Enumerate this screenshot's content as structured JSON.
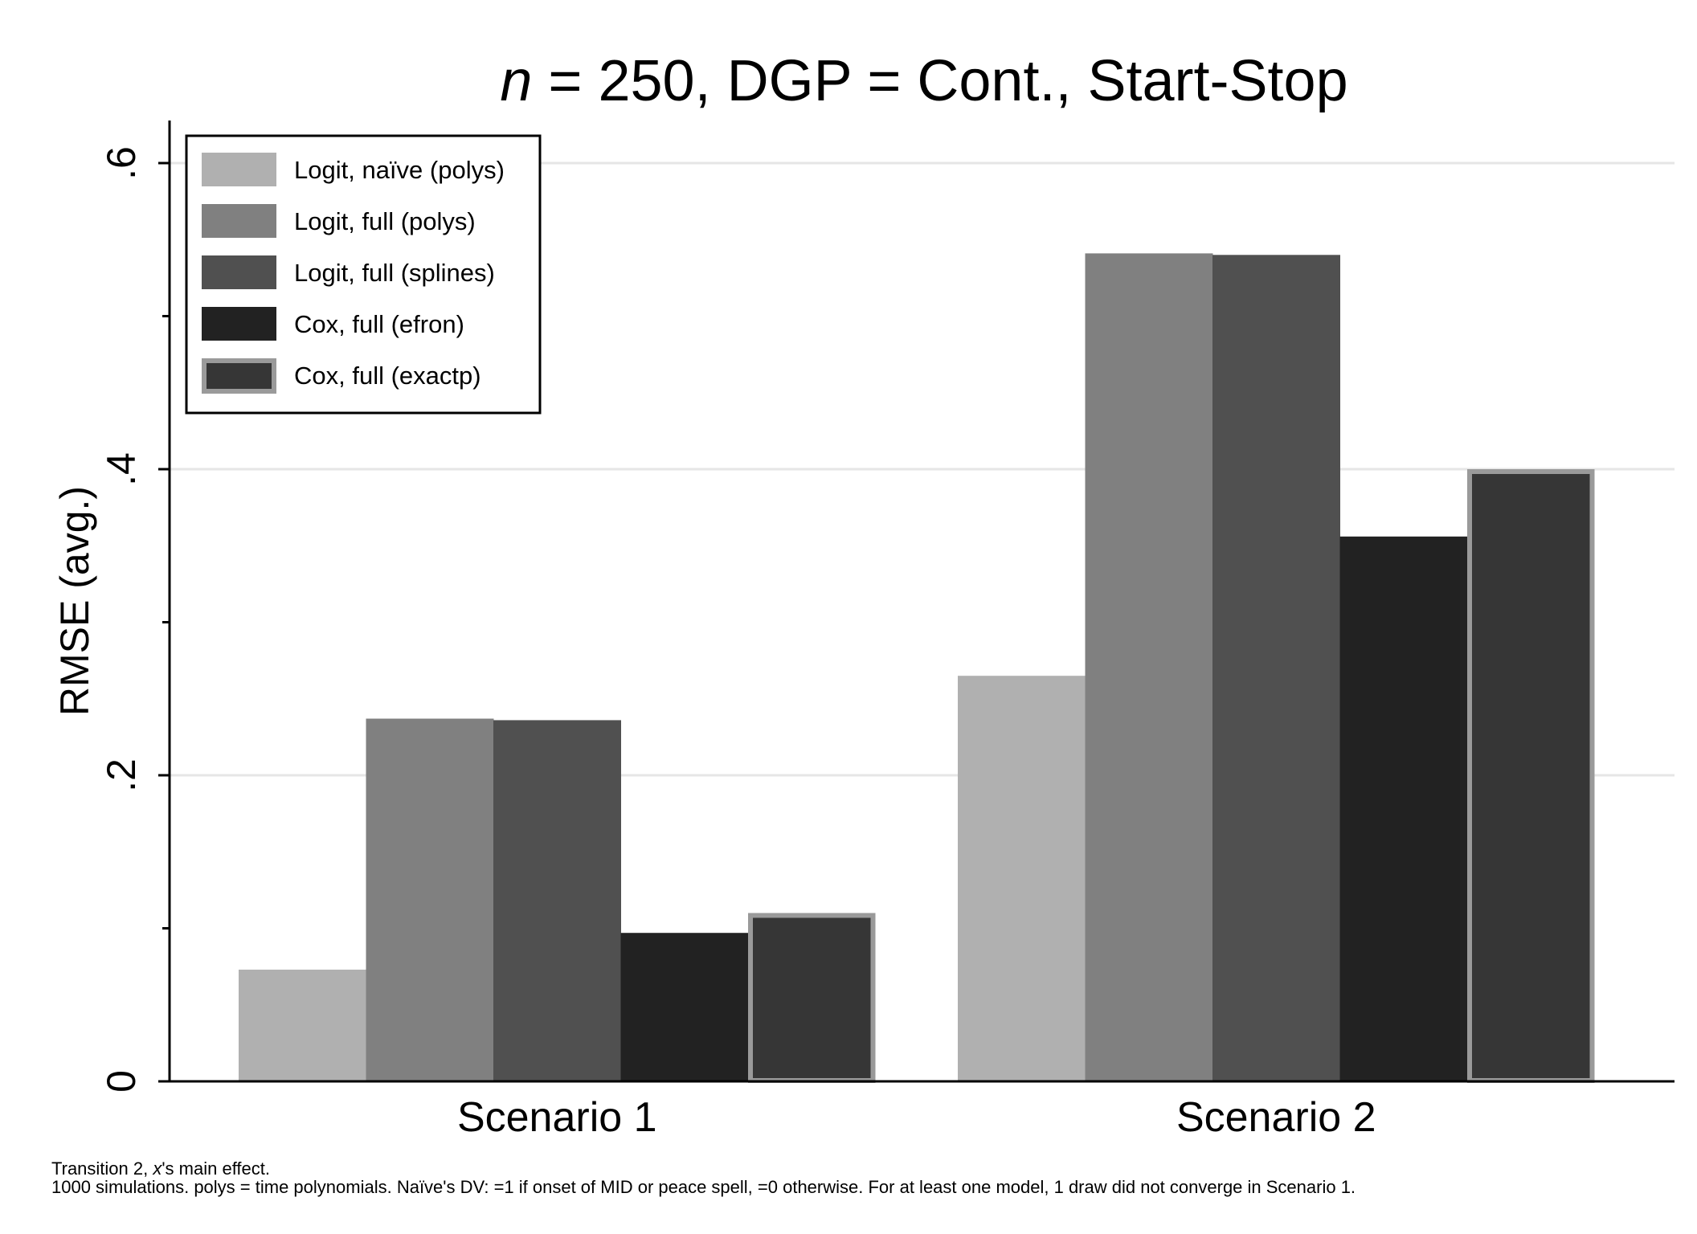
{
  "chart_data": {
    "type": "bar",
    "title_parts": {
      "italic": "n",
      "rest": " = 250, DGP = Cont., Start-Stop"
    },
    "ylabel": "RMSE (avg.)",
    "xlabel": "",
    "ylim": [
      0,
      0.63
    ],
    "yticks": [
      {
        "value": 0,
        "label": "0"
      },
      {
        "value": 0.2,
        "label": ".2"
      },
      {
        "value": 0.4,
        "label": ".4"
      },
      {
        "value": 0.6,
        "label": ".6"
      }
    ],
    "yminor": [
      0.1,
      0.3,
      0.5
    ],
    "grid": true,
    "legend_position": "top-left",
    "categories": [
      "Scenario 1",
      "Scenario 2"
    ],
    "series": [
      {
        "name": "Logit, naïve (polys)",
        "color": "#b0b0b0",
        "outline": null,
        "values": [
          0.073,
          0.265
        ]
      },
      {
        "name": "Logit, full (polys)",
        "color": "#808080",
        "outline": null,
        "values": [
          0.237,
          0.541
        ]
      },
      {
        "name": "Logit, full (splines)",
        "color": "#505050",
        "outline": null,
        "values": [
          0.236,
          0.54
        ]
      },
      {
        "name": "Cox, full (efron)",
        "color": "#222222",
        "outline": null,
        "values": [
          0.097,
          0.356
        ]
      },
      {
        "name": "Cox, full (exactp)",
        "color": "#363636",
        "outline": "#9a9a9a",
        "values": [
          0.11,
          0.4
        ]
      }
    ]
  },
  "notes": {
    "line1_parts": {
      "pre": "Transition 2, ",
      "italic": "x",
      "post": "'s main effect."
    },
    "line2": "1000 simulations.  polys = time polynomials.  Naïve's DV: =1 if onset of MID or peace spell, =0 otherwise.  For at least one model, 1 draw did not converge in Scenario 1."
  }
}
